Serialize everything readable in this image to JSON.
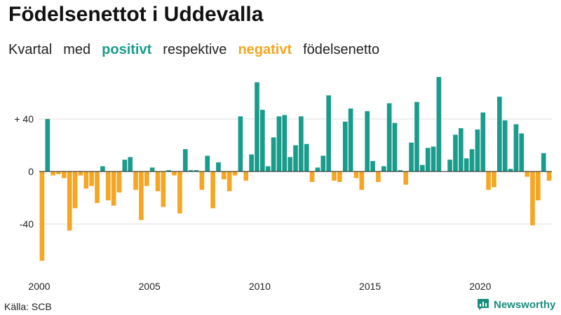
{
  "title": "Födelsenettot i Uddevalla",
  "subtitle": {
    "part1": "Kvartal",
    "part2": "med",
    "positive": "positivt",
    "part3": "respektive",
    "negative": "negativt",
    "part4": "födelsenetto"
  },
  "source": "Källa: SCB",
  "brand": "Newsworthy",
  "colors": {
    "positive": "#1a9c8c",
    "negative": "#f5a623",
    "grid": "#dddddd",
    "brand": "#1a8c7c"
  },
  "chart_data": {
    "type": "bar",
    "title": "Födelsenettot i Uddevalla",
    "xlabel": "",
    "ylabel": "",
    "ylim": [
      -75,
      75
    ],
    "x_start": 2000,
    "x_ticks": [
      {
        "value": 2000,
        "label": "2000"
      },
      {
        "value": 2005,
        "label": "2005"
      },
      {
        "value": 2010,
        "label": "2010"
      },
      {
        "value": 2015,
        "label": "2015"
      },
      {
        "value": 2020,
        "label": "2020"
      }
    ],
    "y_ticks": [
      {
        "value": 40,
        "label": "+ 40"
      },
      {
        "value": 0,
        "label": "0"
      },
      {
        "value": -40,
        "label": "-40"
      }
    ],
    "values": [
      -68,
      40,
      -3,
      -2,
      -5,
      -45,
      -28,
      -3,
      -13,
      -11,
      -24,
      4,
      -22,
      -26,
      -16,
      9,
      11,
      -14,
      -37,
      -11,
      3,
      -15,
      -27,
      1,
      -3,
      -32,
      17,
      1,
      1,
      -14,
      12,
      -28,
      7,
      -6,
      -15,
      -3,
      42,
      -7,
      13,
      68,
      47,
      4,
      26,
      42,
      43,
      11,
      20,
      42,
      21,
      -8,
      3,
      12,
      58,
      -7,
      -8,
      38,
      48,
      -5,
      -14,
      46,
      8,
      -8,
      4,
      52,
      37,
      1,
      -10,
      22,
      53,
      5,
      18,
      19,
      72,
      0,
      9,
      28,
      33,
      10,
      17,
      32,
      45,
      -14,
      -12,
      57,
      39,
      2,
      36,
      29,
      -4,
      -41,
      -22,
      14,
      -7
    ]
  }
}
